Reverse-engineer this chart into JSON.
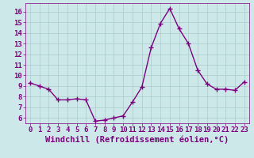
{
  "x": [
    0,
    1,
    2,
    3,
    4,
    5,
    6,
    7,
    8,
    9,
    10,
    11,
    12,
    13,
    14,
    15,
    16,
    17,
    18,
    19,
    20,
    21,
    22,
    23
  ],
  "y": [
    9.3,
    9.0,
    8.7,
    7.7,
    7.7,
    7.8,
    7.7,
    5.7,
    5.8,
    6.0,
    6.2,
    7.5,
    8.9,
    12.6,
    14.9,
    16.3,
    14.4,
    13.0,
    10.5,
    9.2,
    8.7,
    8.7,
    8.6,
    9.4
  ],
  "line_color": "#800080",
  "marker": "+",
  "marker_size": 4,
  "background_color": "#cce8e8",
  "grid_color": "#aacccc",
  "xlabel": "Windchill (Refroidissement éolien,°C)",
  "xlabel_color": "#800080",
  "ylim": [
    5.5,
    16.8
  ],
  "xlim": [
    -0.5,
    23.5
  ],
  "yticks": [
    6,
    7,
    8,
    9,
    10,
    11,
    12,
    13,
    14,
    15,
    16
  ],
  "xticks": [
    0,
    1,
    2,
    3,
    4,
    5,
    6,
    7,
    8,
    9,
    10,
    11,
    12,
    13,
    14,
    15,
    16,
    17,
    18,
    19,
    20,
    21,
    22,
    23
  ],
  "tick_color": "#800080",
  "tick_label_fontsize": 6.5,
  "xlabel_fontsize": 7.5,
  "line_width": 1.0
}
